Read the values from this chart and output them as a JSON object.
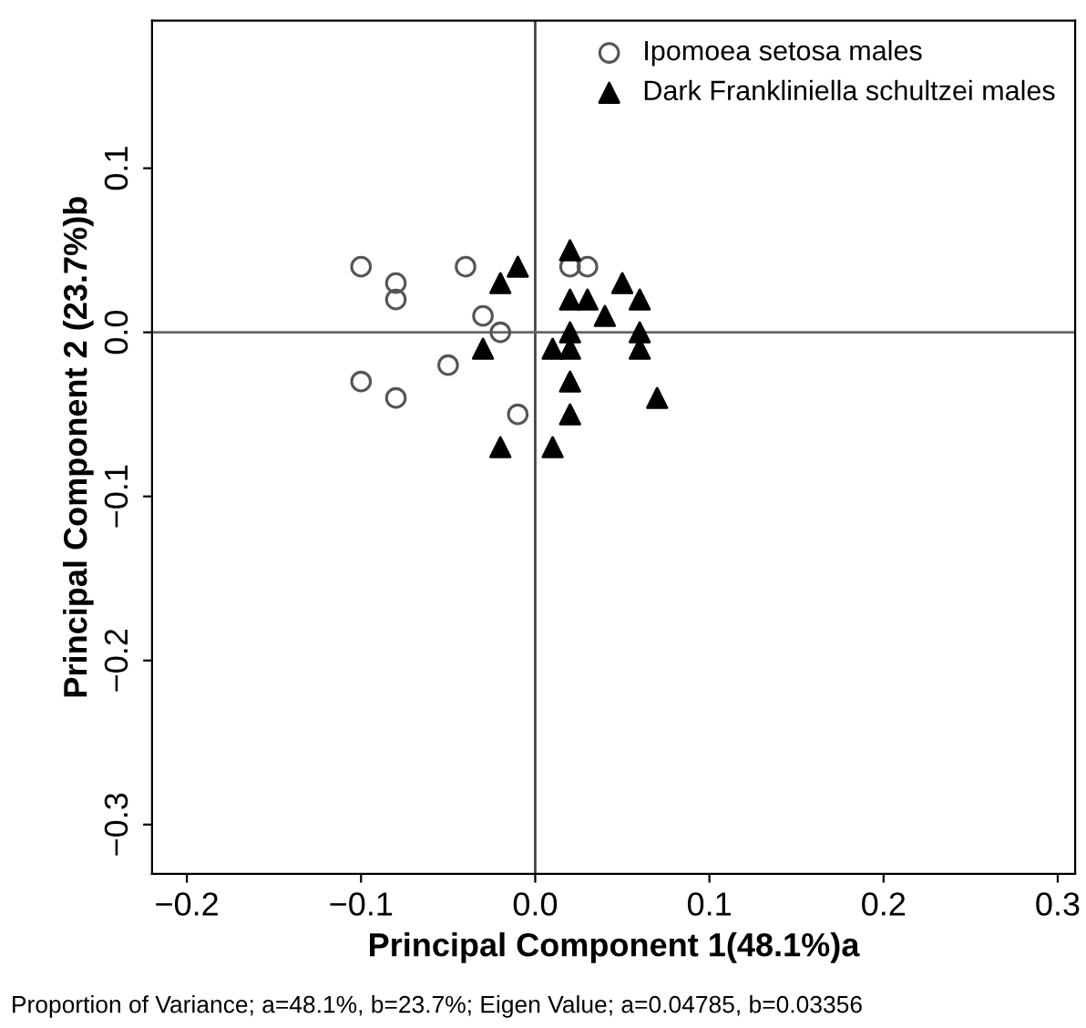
{
  "chart_data": {
    "type": "scatter",
    "xlabel": "Principal Component 1(48.1%)a",
    "ylabel": "Principal Component 2 (23.7%)b",
    "annotations": [
      "Proportion of Variance; a=48.1%, b=23.7%; Eigen Value; a=0.04785, b=0.03356"
    ],
    "series": [
      {
        "name": "Ipomoea setosa males",
        "color": "#555555",
        "marker": "circle",
        "x": [
          -0.1,
          -0.08,
          -0.08,
          -0.04,
          0.02,
          0.03,
          -0.03,
          -0.02,
          -0.05,
          -0.1,
          -0.08,
          -0.01
        ],
        "values": [
          0.04,
          0.03,
          0.02,
          0.04,
          0.04,
          0.04,
          0.01,
          0.0,
          -0.02,
          -0.03,
          -0.04,
          -0.05
        ]
      },
      {
        "name": "Dark Frankliniella schultzei males",
        "color": "#000000",
        "marker": "triangle",
        "x": [
          0.02,
          -0.01,
          -0.02,
          0.05,
          0.02,
          0.03,
          0.06,
          0.04,
          0.02,
          0.06,
          -0.03,
          0.01,
          0.02,
          0.06,
          0.02,
          0.07,
          0.02,
          -0.02,
          0.01
        ],
        "values": [
          0.05,
          0.04,
          0.03,
          0.03,
          0.02,
          0.02,
          0.02,
          0.01,
          0.0,
          0.0,
          -0.01,
          -0.01,
          -0.01,
          -0.01,
          -0.03,
          -0.04,
          -0.05,
          -0.07,
          -0.07
        ]
      }
    ],
    "xlim": [
      -0.22,
      0.31
    ],
    "ylim": [
      -0.33,
      0.19
    ],
    "xticks": [
      {
        "value": -0.2,
        "label": "−0.2"
      },
      {
        "value": -0.1,
        "label": "−0.1"
      },
      {
        "value": 0,
        "label": "0.0"
      },
      0.1,
      0.2,
      0.3
    ],
    "yticks": [
      {
        "value": -0.3,
        "label": "−0.3"
      },
      {
        "value": -0.2,
        "label": "−0.2"
      },
      {
        "value": -0.1,
        "label": "−0.1"
      },
      {
        "value": 0,
        "label": "0.0"
      },
      0.1
    ],
    "ref_lines": [
      {
        "axis": "x",
        "value": 0,
        "color": "#444444"
      },
      {
        "axis": "y",
        "value": 0,
        "color": "#666666"
      }
    ],
    "legend": "top right",
    "grid": false
  }
}
